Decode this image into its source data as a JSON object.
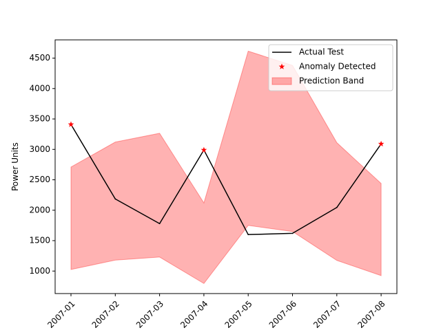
{
  "chart_data": {
    "type": "line",
    "title": "",
    "xlabel": "",
    "ylabel": "Power Units",
    "x": [
      "2007-01",
      "2007-02",
      "2007-03",
      "2007-04",
      "2007-05",
      "2007-06",
      "2007-07",
      "2007-08"
    ],
    "ylim": [
      630,
      4800
    ],
    "yticks": [
      1000,
      1500,
      2000,
      2500,
      3000,
      3500,
      4000,
      4500
    ],
    "grid": false,
    "legend_position": "upper-right",
    "series": [
      {
        "name": "Actual Test",
        "kind": "line",
        "color": "#000000",
        "values": [
          3410,
          2185,
          1780,
          2990,
          1600,
          1620,
          2045,
          3090
        ]
      },
      {
        "name": "Anomaly Detected",
        "kind": "marker",
        "marker": "star",
        "color": "#ff0000",
        "points": [
          {
            "x": "2007-01",
            "y": 3410
          },
          {
            "x": "2007-04",
            "y": 2990
          },
          {
            "x": "2007-08",
            "y": 3090
          }
        ]
      },
      {
        "name": "Prediction Band",
        "kind": "band",
        "color": "#ff0000",
        "opacity": 0.3,
        "lower": [
          1025,
          1180,
          1230,
          795,
          1750,
          1650,
          1175,
          925
        ],
        "upper": [
          2710,
          3120,
          3265,
          2120,
          4615,
          4380,
          3110,
          2440
        ]
      }
    ]
  }
}
